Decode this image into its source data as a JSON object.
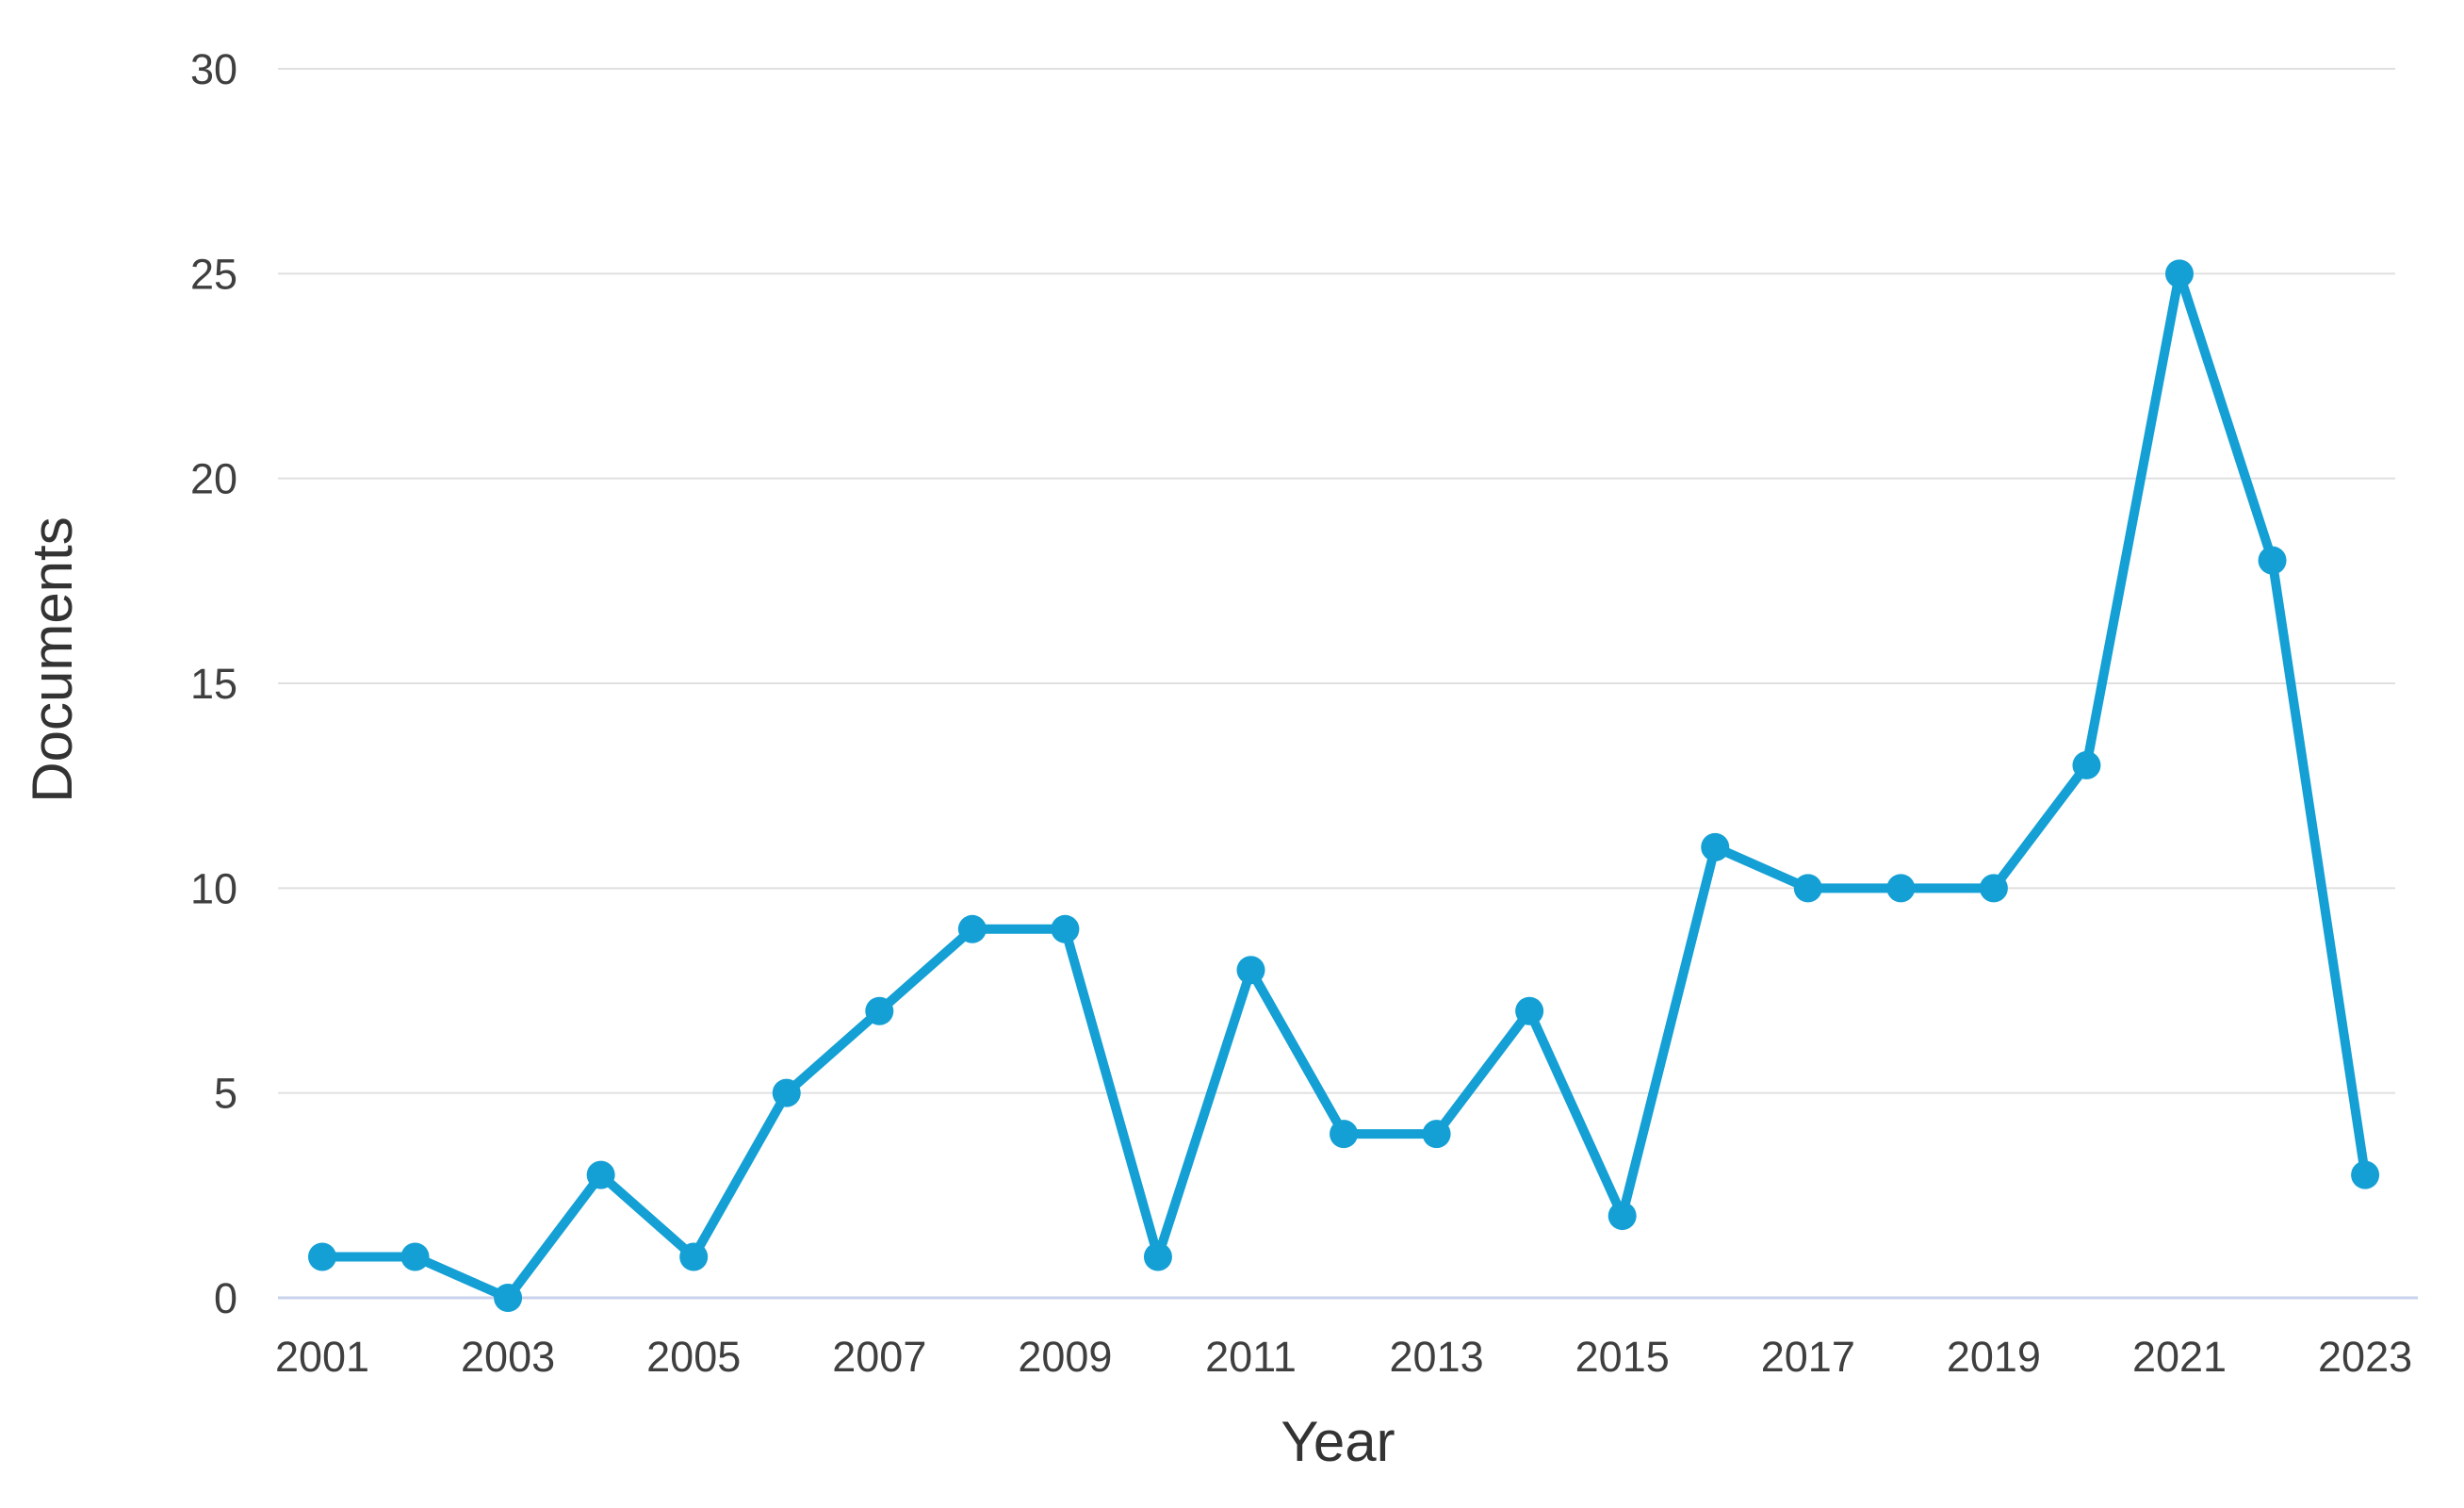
{
  "chart_data": {
    "type": "line",
    "title": "",
    "xlabel": "Year",
    "ylabel": "Documents",
    "x": [
      2001,
      2002,
      2003,
      2004,
      2005,
      2006,
      2007,
      2008,
      2009,
      2010,
      2011,
      2012,
      2013,
      2014,
      2015,
      2016,
      2017,
      2018,
      2019,
      2020,
      2021,
      2022,
      2023
    ],
    "series": [
      {
        "name": "Documents",
        "values": [
          1,
          1,
          0,
          3,
          1,
          5,
          7,
          9,
          9,
          1,
          8,
          4,
          4,
          7,
          2,
          11,
          10,
          10,
          10,
          13,
          25,
          18,
          3
        ]
      }
    ],
    "ylim": [
      0,
      30
    ],
    "yticks": [
      0,
      5,
      10,
      15,
      20,
      25,
      30
    ],
    "xtick_labels": [
      "2001",
      "2003",
      "2005",
      "2007",
      "2009",
      "2011",
      "2013",
      "2015",
      "2017",
      "2019",
      "2021",
      "2023"
    ],
    "grid": true,
    "legend": "none",
    "colors": {
      "line": "#14a0d5",
      "marker": "#14a0d5",
      "gridline": "#e0e0e0",
      "zero_axis": "#c8d2ec",
      "tick_text": "#3f3f3f",
      "axis_title_text": "#333333"
    }
  }
}
